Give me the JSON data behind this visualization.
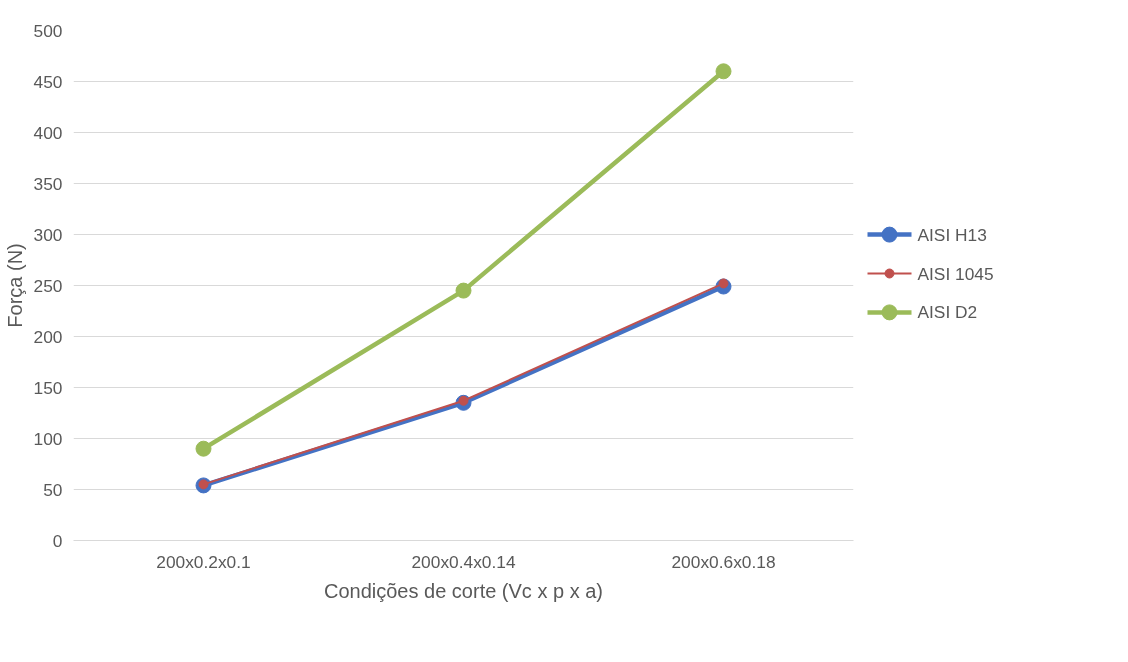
{
  "chart_data": {
    "type": "line",
    "xlabel": "Condições de corte (Vc x p x a)",
    "ylabel": "Força (N)",
    "categories": [
      "200x0.2x0.1",
      "200x0.4x0.14",
      "200x0.6x0.18"
    ],
    "series": [
      {
        "name": "AISI H13",
        "color": "#4472c4",
        "values": [
          54,
          135,
          249
        ]
      },
      {
        "name": "AISI 1045",
        "color": "#c0504d",
        "values": [
          55,
          137,
          252
        ]
      },
      {
        "name": "AISI D2",
        "color": "#9bbb59",
        "values": [
          90,
          245,
          460
        ]
      }
    ],
    "ylim": [
      0,
      500
    ],
    "yticks": [
      0,
      50,
      100,
      150,
      200,
      250,
      300,
      350,
      400,
      450,
      500
    ],
    "grid": "y",
    "legend": "right",
    "marker": "circle",
    "line_style": "solid"
  }
}
